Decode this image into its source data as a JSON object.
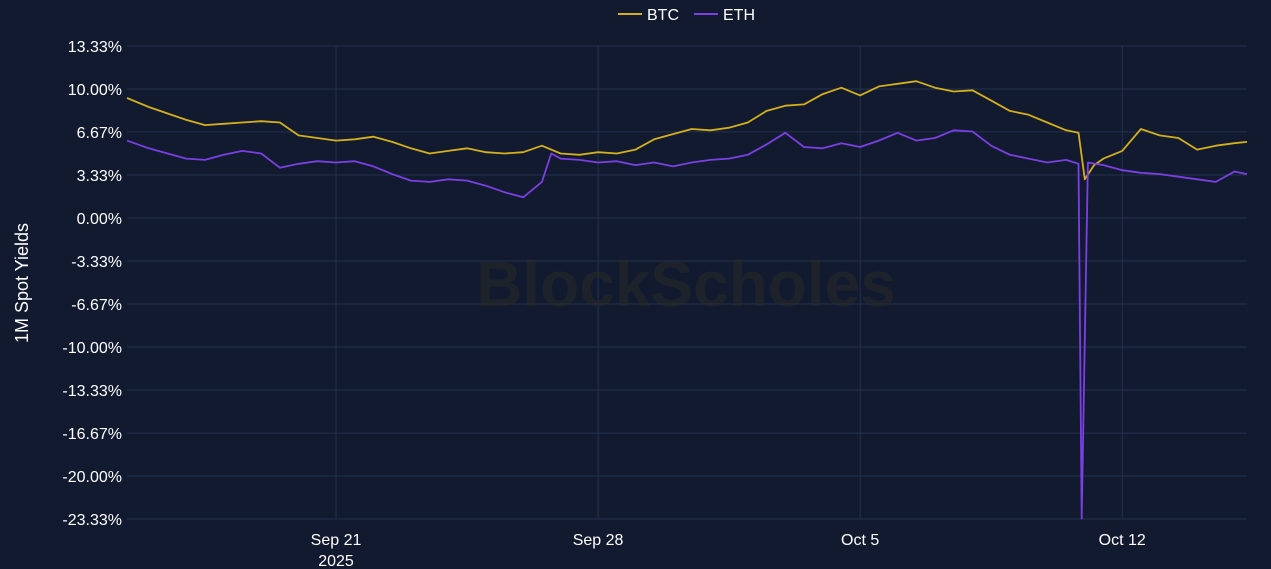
{
  "chart_data": {
    "type": "line",
    "xlabel": "",
    "ylabel": "1M Spot Yields",
    "watermark": "BlockScholes",
    "legend_position": "top-center",
    "grid": true,
    "x_ticks": [
      {
        "date": "2025-09-21",
        "label": "Sep 21",
        "sublabel": "2025"
      },
      {
        "date": "2025-09-28",
        "label": "Sep 28",
        "sublabel": ""
      },
      {
        "date": "2025-10-05",
        "label": "Oct 5",
        "sublabel": ""
      },
      {
        "date": "2025-10-12",
        "label": "Oct 12",
        "sublabel": ""
      }
    ],
    "x_range": [
      "2025-09-15T10:00",
      "2025-10-15T08:00"
    ],
    "y_ticks": [
      "13.33%",
      "10.00%",
      "6.67%",
      "3.33%",
      "0.00%",
      "-3.33%",
      "-6.67%",
      "-10.00%",
      "-13.33%",
      "-16.67%",
      "-20.00%",
      "-23.33%"
    ],
    "ylim": [
      -23.33,
      13.33
    ],
    "series": [
      {
        "name": "BTC",
        "color": "#d4af1e",
        "points": [
          [
            "2025-09-15T10:00",
            9.3
          ],
          [
            "2025-09-16T00:00",
            8.6
          ],
          [
            "2025-09-16T12:00",
            8.1
          ],
          [
            "2025-09-17T00:00",
            7.6
          ],
          [
            "2025-09-17T12:00",
            7.2
          ],
          [
            "2025-09-18T00:00",
            7.3
          ],
          [
            "2025-09-18T12:00",
            7.4
          ],
          [
            "2025-09-19T00:00",
            7.5
          ],
          [
            "2025-09-19T12:00",
            7.4
          ],
          [
            "2025-09-20T00:00",
            6.4
          ],
          [
            "2025-09-20T12:00",
            6.2
          ],
          [
            "2025-09-21T00:00",
            6.0
          ],
          [
            "2025-09-21T12:00",
            6.1
          ],
          [
            "2025-09-22T00:00",
            6.3
          ],
          [
            "2025-09-22T12:00",
            5.9
          ],
          [
            "2025-09-23T00:00",
            5.4
          ],
          [
            "2025-09-23T12:00",
            5.0
          ],
          [
            "2025-09-24T00:00",
            5.2
          ],
          [
            "2025-09-24T12:00",
            5.4
          ],
          [
            "2025-09-25T00:00",
            5.1
          ],
          [
            "2025-09-25T12:00",
            5.0
          ],
          [
            "2025-09-26T00:00",
            5.1
          ],
          [
            "2025-09-26T12:00",
            5.6
          ],
          [
            "2025-09-27T00:00",
            5.0
          ],
          [
            "2025-09-27T12:00",
            4.9
          ],
          [
            "2025-09-28T00:00",
            5.1
          ],
          [
            "2025-09-28T12:00",
            5.0
          ],
          [
            "2025-09-29T00:00",
            5.3
          ],
          [
            "2025-09-29T12:00",
            6.1
          ],
          [
            "2025-09-30T00:00",
            6.5
          ],
          [
            "2025-09-30T12:00",
            6.9
          ],
          [
            "2025-10-01T00:00",
            6.8
          ],
          [
            "2025-10-01T12:00",
            7.0
          ],
          [
            "2025-10-02T00:00",
            7.4
          ],
          [
            "2025-10-02T12:00",
            8.3
          ],
          [
            "2025-10-03T00:00",
            8.7
          ],
          [
            "2025-10-03T12:00",
            8.8
          ],
          [
            "2025-10-04T00:00",
            9.6
          ],
          [
            "2025-10-04T12:00",
            10.1
          ],
          [
            "2025-10-05T00:00",
            9.5
          ],
          [
            "2025-10-05T12:00",
            10.2
          ],
          [
            "2025-10-06T00:00",
            10.4
          ],
          [
            "2025-10-06T12:00",
            10.6
          ],
          [
            "2025-10-07T00:00",
            10.1
          ],
          [
            "2025-10-07T12:00",
            9.8
          ],
          [
            "2025-10-08T00:00",
            9.9
          ],
          [
            "2025-10-08T12:00",
            9.1
          ],
          [
            "2025-10-09T00:00",
            8.3
          ],
          [
            "2025-10-09T12:00",
            8.0
          ],
          [
            "2025-10-10T00:00",
            7.4
          ],
          [
            "2025-10-10T12:00",
            6.8
          ],
          [
            "2025-10-10T20:00",
            6.6
          ],
          [
            "2025-10-11T00:00",
            3.0
          ],
          [
            "2025-10-11T06:00",
            4.1
          ],
          [
            "2025-10-11T12:00",
            4.6
          ],
          [
            "2025-10-12T00:00",
            5.2
          ],
          [
            "2025-10-12T12:00",
            6.9
          ],
          [
            "2025-10-13T00:00",
            6.4
          ],
          [
            "2025-10-13T12:00",
            6.2
          ],
          [
            "2025-10-14T00:00",
            5.3
          ],
          [
            "2025-10-14T12:00",
            5.6
          ],
          [
            "2025-10-15T00:00",
            5.8
          ],
          [
            "2025-10-15T08:00",
            5.9
          ]
        ]
      },
      {
        "name": "ETH",
        "color": "#7b3fe4",
        "points": [
          [
            "2025-09-15T10:00",
            6.0
          ],
          [
            "2025-09-16T00:00",
            5.4
          ],
          [
            "2025-09-16T12:00",
            5.0
          ],
          [
            "2025-09-17T00:00",
            4.6
          ],
          [
            "2025-09-17T12:00",
            4.5
          ],
          [
            "2025-09-18T00:00",
            4.9
          ],
          [
            "2025-09-18T12:00",
            5.2
          ],
          [
            "2025-09-19T00:00",
            5.0
          ],
          [
            "2025-09-19T12:00",
            3.9
          ],
          [
            "2025-09-20T00:00",
            4.2
          ],
          [
            "2025-09-20T12:00",
            4.4
          ],
          [
            "2025-09-21T00:00",
            4.3
          ],
          [
            "2025-09-21T12:00",
            4.4
          ],
          [
            "2025-09-22T00:00",
            4.0
          ],
          [
            "2025-09-22T12:00",
            3.4
          ],
          [
            "2025-09-23T00:00",
            2.9
          ],
          [
            "2025-09-23T12:00",
            2.8
          ],
          [
            "2025-09-24T00:00",
            3.0
          ],
          [
            "2025-09-24T12:00",
            2.9
          ],
          [
            "2025-09-25T00:00",
            2.5
          ],
          [
            "2025-09-25T12:00",
            2.0
          ],
          [
            "2025-09-26T00:00",
            1.6
          ],
          [
            "2025-09-26T12:00",
            2.8
          ],
          [
            "2025-09-26T18:00",
            5.0
          ],
          [
            "2025-09-27T00:00",
            4.6
          ],
          [
            "2025-09-27T12:00",
            4.5
          ],
          [
            "2025-09-28T00:00",
            4.3
          ],
          [
            "2025-09-28T12:00",
            4.4
          ],
          [
            "2025-09-29T00:00",
            4.1
          ],
          [
            "2025-09-29T12:00",
            4.3
          ],
          [
            "2025-09-30T00:00",
            4.0
          ],
          [
            "2025-09-30T12:00",
            4.3
          ],
          [
            "2025-10-01T00:00",
            4.5
          ],
          [
            "2025-10-01T12:00",
            4.6
          ],
          [
            "2025-10-02T00:00",
            4.9
          ],
          [
            "2025-10-02T12:00",
            5.7
          ],
          [
            "2025-10-03T00:00",
            6.6
          ],
          [
            "2025-10-03T12:00",
            5.5
          ],
          [
            "2025-10-04T00:00",
            5.4
          ],
          [
            "2025-10-04T12:00",
            5.8
          ],
          [
            "2025-10-05T00:00",
            5.5
          ],
          [
            "2025-10-05T12:00",
            6.0
          ],
          [
            "2025-10-06T00:00",
            6.6
          ],
          [
            "2025-10-06T12:00",
            6.0
          ],
          [
            "2025-10-07T00:00",
            6.2
          ],
          [
            "2025-10-07T12:00",
            6.8
          ],
          [
            "2025-10-08T00:00",
            6.7
          ],
          [
            "2025-10-08T12:00",
            5.6
          ],
          [
            "2025-10-09T00:00",
            4.9
          ],
          [
            "2025-10-09T12:00",
            4.6
          ],
          [
            "2025-10-10T00:00",
            4.3
          ],
          [
            "2025-10-10T12:00",
            4.5
          ],
          [
            "2025-10-10T20:00",
            4.2
          ],
          [
            "2025-10-10T22:00",
            -23.3
          ],
          [
            "2025-10-11T02:00",
            4.3
          ],
          [
            "2025-10-11T12:00",
            4.1
          ],
          [
            "2025-10-12T00:00",
            3.7
          ],
          [
            "2025-10-12T12:00",
            3.5
          ],
          [
            "2025-10-13T00:00",
            3.4
          ],
          [
            "2025-10-13T12:00",
            3.2
          ],
          [
            "2025-10-14T00:00",
            3.0
          ],
          [
            "2025-10-14T12:00",
            2.8
          ],
          [
            "2025-10-15T00:00",
            3.6
          ],
          [
            "2025-10-15T08:00",
            3.4
          ]
        ]
      }
    ]
  }
}
